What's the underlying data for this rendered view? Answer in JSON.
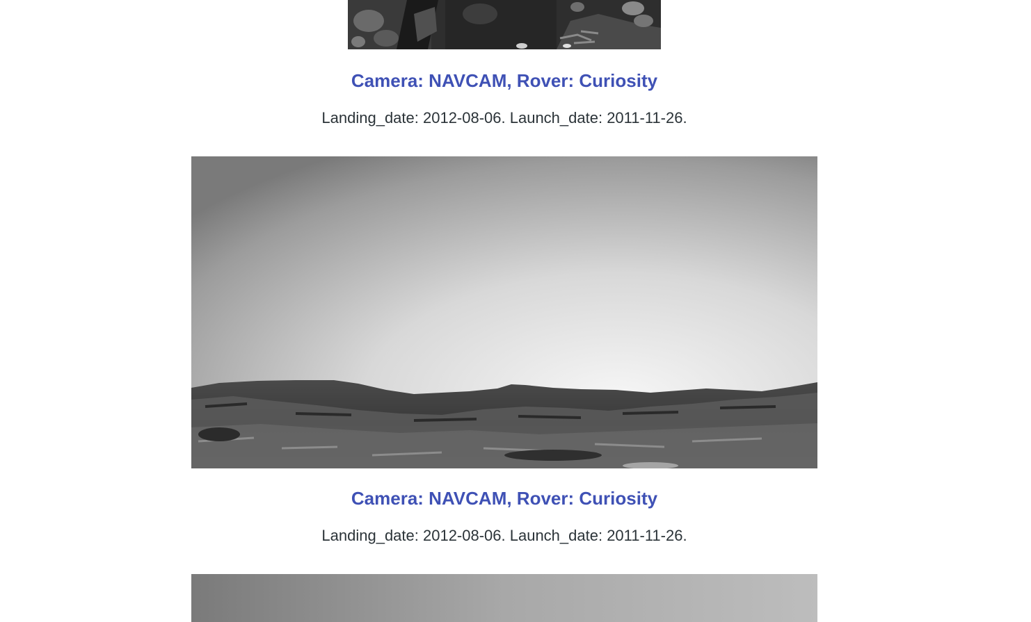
{
  "feed": {
    "items": [
      {
        "image_alt": "Mars rover NAVCAM photo showing rover hardware and rocky ground",
        "title": "Camera: NAVCAM, Rover: Curiosity",
        "meta": "Landing_date: 2012-08-06. Launch_date: 2011-11-26."
      },
      {
        "image_alt": "Mars rover NAVCAM photo of a bright sky over a rocky ridge",
        "title": "Camera: NAVCAM, Rover: Curiosity",
        "meta": "Landing_date: 2012-08-06. Launch_date: 2011-11-26."
      },
      {
        "image_alt": "Mars rover NAVCAM photo of the sky"
      }
    ]
  }
}
